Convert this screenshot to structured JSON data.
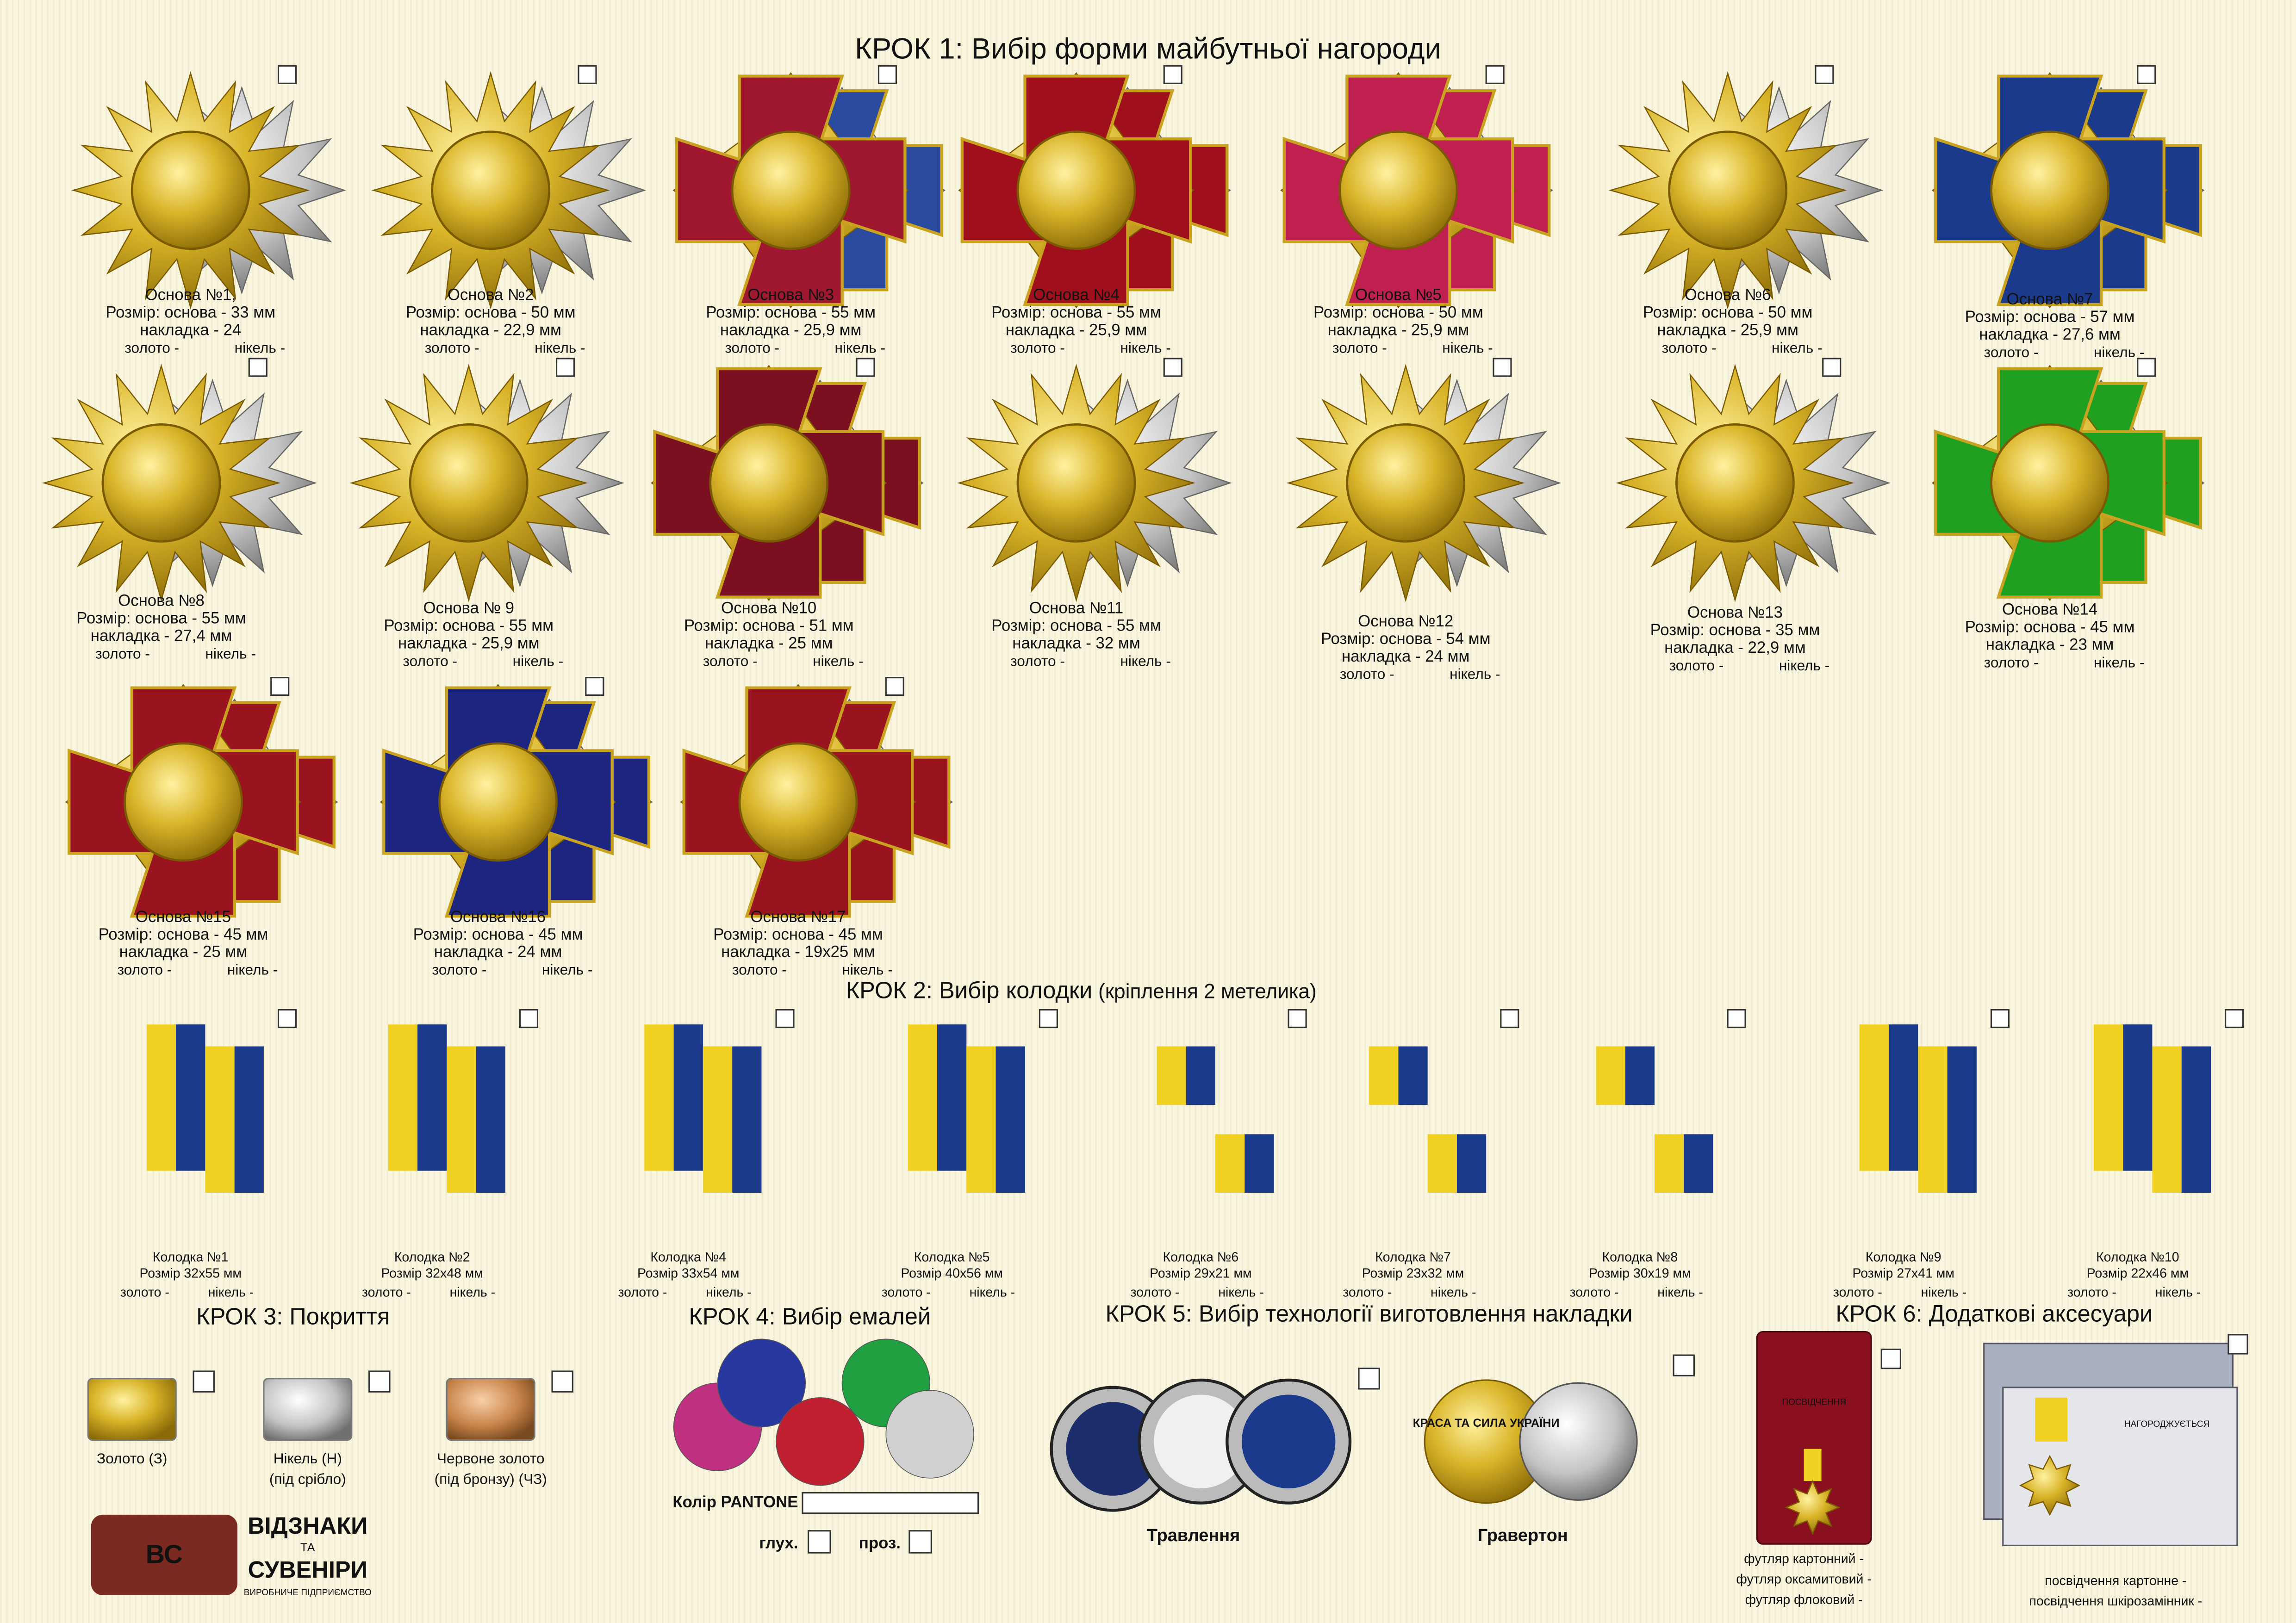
{
  "step1": {
    "title": "КРОК 1: Вибір форми майбутньої нагороди",
    "items": [
      {
        "label": "Основа №1,",
        "base": "Розмір: основа - 33 мм",
        "overlay": "накладка - 24",
        "gold": "золото -",
        "nickel": "нікель -"
      },
      {
        "label": "Основа №2",
        "base": "Розмір: основа -  50 мм",
        "overlay": "накладка - 22,9 мм",
        "gold": "золото -",
        "nickel": "нікель -"
      },
      {
        "label": "Основа №3",
        "base": "Розмір: основа - 55 мм",
        "overlay": "накладка - 25,9 мм",
        "gold": "золото -",
        "nickel": "нікель -",
        "enamel": "#a01830"
      },
      {
        "label": "Основа №4",
        "base": "Розмір: основа - 55 мм",
        "overlay": "накладка - 25,9 мм",
        "gold": "золото -",
        "nickel": "нікель -",
        "enamel": "#a0101c"
      },
      {
        "label": "Основа №5",
        "base": "Розмір: основа -  50 мм",
        "overlay": "накладка - 25,9 мм",
        "gold": "золото -",
        "nickel": "нікель -",
        "enamel": "#c02050"
      },
      {
        "label": "Основа №6",
        "base": "Розмір: основа - 50 мм",
        "overlay": "накладка - 25,9 мм",
        "gold": "золото -",
        "nickel": "нікель -"
      },
      {
        "label": "Основа №7",
        "base": "Розмір: основа - 57 мм",
        "overlay": "накладка - 27,6 мм",
        "gold": "золото -",
        "nickel": "нікель -",
        "enamel": "#1c3a8c"
      },
      {
        "label": "Основа №8",
        "base": "Розмір: основа - 55 мм",
        "overlay": "накладка - 27,4 мм",
        "gold": "золото -",
        "nickel": "нікель -"
      },
      {
        "label": "Основа № 9",
        "base": "Розмір: основа - 55 мм",
        "overlay": "накладка - 25,9 мм",
        "gold": "золото -",
        "nickel": "нікель -"
      },
      {
        "label": "Основа №10",
        "base": "Розмір: основа - 51 мм",
        "overlay": "накладка - 25 мм",
        "gold": "золото -",
        "nickel": "нікель -",
        "enamel": "#7a1020"
      },
      {
        "label": "Основа №11",
        "base": "Розмір: основа - 55 мм",
        "overlay": "накладка - 32 мм",
        "gold": "золото -",
        "nickel": "нікель -"
      },
      {
        "label": "Основа №12",
        "base": "Розмір: основа - 54 мм",
        "overlay": "накладка - 24 мм",
        "gold": "золото -",
        "nickel": "нікель -"
      },
      {
        "label": "Основа №13",
        "base": "Розмір: основа - 35 мм",
        "overlay": "накладка - 22,9 мм",
        "gold": "золото -",
        "nickel": "нікель -"
      },
      {
        "label": "Основа №14",
        "base": "Розмір: основа - 45 мм",
        "overlay": "накладка - 23 мм",
        "gold": "золото -",
        "nickel": "нікель -",
        "enamel": "#20a020"
      },
      {
        "label": "Основа №15",
        "base": "Розмір: основа - 45 мм",
        "overlay": "накладка - 25 мм",
        "gold": "золото -",
        "nickel": "нікель -",
        "enamel": "#9a1420"
      },
      {
        "label": "Основа №16",
        "base": "Розмір: основа - 45 мм",
        "overlay": "накладка - 24 мм",
        "gold": "золото -",
        "nickel": "нікель -",
        "enamel": "#1c2680"
      },
      {
        "label": "Основа №17",
        "base": "Розмір: основа - 45 мм",
        "overlay": "накладка - 19х25 мм",
        "gold": "золото -",
        "nickel": "нікель -",
        "enamel": "#9a1420"
      }
    ]
  },
  "step2": {
    "title": "КРОК 2: Вибір колодки",
    "note": "(кріплення 2 метелика)",
    "items": [
      {
        "label": "Колодка №1",
        "size": "Розмір 32х55 мм",
        "gold": "золото -",
        "nickel": "нікель -"
      },
      {
        "label": "Колодка №2",
        "size": "Розмір 32х48 мм",
        "gold": "золото -",
        "nickel": "нікель -"
      },
      {
        "label": "Колодка №4",
        "size": "Розмір 33х54 мм",
        "gold": "золото -",
        "nickel": "нікель -"
      },
      {
        "label": "Колодка №5",
        "size": "Розмір 40х56 мм",
        "gold": "золото -",
        "nickel": "нікель -"
      },
      {
        "label": "Колодка №6",
        "size": "Розмір 29х21 мм",
        "gold": "золото -",
        "nickel": "нікель -"
      },
      {
        "label": "Колодка №7",
        "size": "Розмір 23х32 мм",
        "gold": "золото -",
        "nickel": "нікель -"
      },
      {
        "label": "Колодка №8",
        "size": "Розмір 30х19 мм",
        "gold": "золото -",
        "nickel": "нікель -"
      },
      {
        "label": "Колодка №9",
        "size": "Розмір 27х41 мм",
        "gold": "золото -",
        "nickel": "нікель -"
      },
      {
        "label": "Колодка №10",
        "size": "Розмір 22х46 мм",
        "gold": "золото -",
        "nickel": "нікель -"
      }
    ]
  },
  "step3": {
    "title": "КРОК 3: Покриття",
    "items": [
      {
        "label": "Золото (З)",
        "color": "#d8b820"
      },
      {
        "label": "Нікель (Н)",
        "sub": "(під срібло)",
        "color": "#c8c8c8"
      },
      {
        "label": "Червоне золото",
        "sub": "(під бронзу) (ЧЗ)",
        "color": "#d08a50"
      }
    ]
  },
  "step4": {
    "title": "КРОК 4: Вибір емалей",
    "pantone": "Колір PANTONE",
    "matte": "глух.",
    "clear": "проз."
  },
  "step5": {
    "title": "КРОК 5: Вибір технології виготовлення накладки",
    "items": [
      "Травлення",
      "Гравертон"
    ],
    "badge": "КРАСА ТА СИЛА УКРАЇНИ"
  },
  "step6": {
    "title": "КРОК 6: Додаткові аксесуари",
    "case": [
      "футляр картонний -",
      "футляр оксамитовий -",
      "футляр флоковий -"
    ],
    "case_text": "ПОСВІДЧЕННЯ",
    "certificate": [
      "посвідчення картонне -",
      "посвідчення шкірозамінник -"
    ],
    "certificate_text": "НАГОРОДЖУЄТЬСЯ"
  },
  "logo": {
    "mark": "ВС",
    "line1": "ВІДЗНАКИ",
    "line2": "ТА",
    "line3": "СУВЕНІРИ",
    "line4": "ВИРОБНИЧЕ ПІДПРИЄМСТВО"
  }
}
